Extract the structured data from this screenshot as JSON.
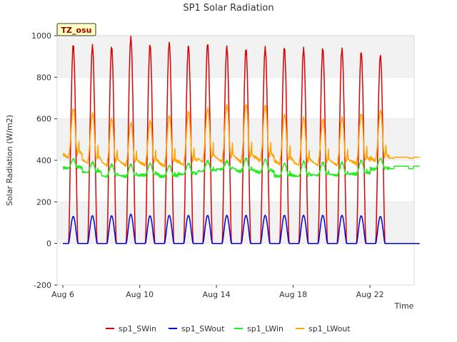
{
  "chart_data": {
    "type": "line",
    "title": "SP1 Solar Radiation",
    "xlabel": "Time",
    "ylabel": "Solar Radiation (W/m2)",
    "site_label": "TZ_osu",
    "ylim": [
      -200,
      1000
    ],
    "xlim": [
      "2023-08-06",
      "2023-08-24"
    ],
    "yticks": [
      -200,
      0,
      200,
      400,
      600,
      800,
      1000
    ],
    "xticks": [
      {
        "date": "2023-08-06",
        "label": "Aug 6"
      },
      {
        "date": "2023-08-10",
        "label": "Aug 10"
      },
      {
        "date": "2023-08-14",
        "label": "Aug 14"
      },
      {
        "date": "2023-08-18",
        "label": "Aug 18"
      },
      {
        "date": "2023-08-22",
        "label": "Aug 22"
      }
    ],
    "grid": "horizontal alternating bands",
    "legend_position": "bottom",
    "days": [
      "2023-08-06",
      "2023-08-07",
      "2023-08-08",
      "2023-08-09",
      "2023-08-10",
      "2023-08-11",
      "2023-08-12",
      "2023-08-13",
      "2023-08-14",
      "2023-08-15",
      "2023-08-16",
      "2023-08-17",
      "2023-08-18",
      "2023-08-19",
      "2023-08-20",
      "2023-08-21",
      "2023-08-22",
      "2023-08-23"
    ],
    "series": [
      {
        "name": "sp1_SWin",
        "color": "#dd0000",
        "daily_peak": [
          955,
          948,
          945,
          990,
          955,
          965,
          950,
          960,
          945,
          935,
          940,
          940,
          935,
          938,
          935,
          920,
          905,
          0
        ],
        "night_value": 0
      },
      {
        "name": "sp1_SWout",
        "color": "#0000dd",
        "daily_peak": [
          130,
          133,
          133,
          140,
          133,
          135,
          135,
          135,
          135,
          135,
          135,
          135,
          135,
          135,
          135,
          133,
          130,
          0
        ],
        "night_value": 0
      },
      {
        "name": "sp1_LWin",
        "color": "#22ee22",
        "daily_peak": [
          405,
          390,
          380,
          380,
          385,
          375,
          385,
          395,
          395,
          410,
          405,
          385,
          395,
          390,
          390,
          400,
          410,
          0
        ],
        "daily_min": [
          360,
          340,
          320,
          320,
          325,
          320,
          330,
          345,
          355,
          345,
          340,
          320,
          320,
          325,
          325,
          330,
          355,
          0
        ],
        "end_value": 372
      },
      {
        "name": "sp1_LWout",
        "color": "#ffa500",
        "daily_peak": [
          650,
          625,
          600,
          580,
          590,
          615,
          635,
          650,
          665,
          670,
          665,
          620,
          605,
          598,
          605,
          625,
          640,
          0
        ],
        "daily_min": [
          405,
          380,
          370,
          370,
          370,
          365,
          370,
          385,
          385,
          385,
          390,
          375,
          370,
          370,
          370,
          375,
          390,
          0
        ],
        "end_value": 415
      }
    ]
  }
}
